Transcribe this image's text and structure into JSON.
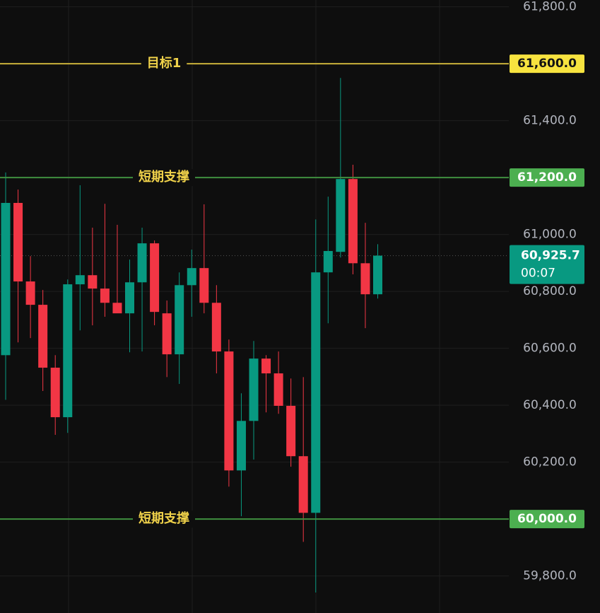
{
  "chart_data": {
    "type": "candlestick",
    "ylim": [
      59670,
      61824
    ],
    "yticks": [
      {
        "value": 59800,
        "label": "59,800.0"
      },
      {
        "value": 60000,
        "label": "60,000.0"
      },
      {
        "value": 60200,
        "label": "60,200.0"
      },
      {
        "value": 60400,
        "label": "60,400.0"
      },
      {
        "value": 60600,
        "label": "60,600.0"
      },
      {
        "value": 60800,
        "label": "60,800.0"
      },
      {
        "value": 61000,
        "label": "61,000.0"
      },
      {
        "value": 61200,
        "label": "61,200.0"
      },
      {
        "value": 61400,
        "label": "61,400.0"
      },
      {
        "value": 61600,
        "label": "61,600.0"
      },
      {
        "value": 61800,
        "label": "61,800.0"
      }
    ],
    "grid": true,
    "up_color": "#089981",
    "down_color": "#f23645",
    "series": [
      {
        "open": [
          60576,
          61111,
          60835,
          60753,
          60532,
          60358,
          60825,
          60857,
          60810,
          60760,
          60723,
          60832,
          60969,
          60723,
          60579,
          60822,
          60882,
          60760,
          60589,
          60171,
          60345,
          60564,
          60512,
          60398,
          60221,
          60022,
          60867,
          60939,
          61195,
          60899,
          60790
        ],
        "high": [
          61218,
          61158,
          60924,
          60805,
          60576,
          60842,
          61173,
          61024,
          61108,
          61034,
          60912,
          61024,
          60979,
          60768,
          60867,
          60947,
          61106,
          60822,
          60631,
          60442,
          60626,
          60576,
          60589,
          60494,
          60499,
          61053,
          61133,
          61550,
          61245,
          61041,
          60966
        ],
        "low": [
          60419,
          60621,
          60636,
          60450,
          60296,
          60303,
          60663,
          60681,
          60711,
          60730,
          60586,
          60589,
          60681,
          60499,
          60475,
          60711,
          60723,
          60512,
          60114,
          60010,
          60209,
          60375,
          60370,
          60184,
          59920,
          59742,
          60688,
          60919,
          60860,
          60671,
          60775
        ],
        "close": [
          61111,
          60835,
          60753,
          60532,
          60358,
          60825,
          60857,
          60810,
          60760,
          60723,
          60832,
          60969,
          60728,
          60579,
          60822,
          60882,
          60760,
          60589,
          60171,
          60345,
          60564,
          60512,
          60398,
          60221,
          60022,
          60867,
          60942,
          61195,
          60899,
          60790,
          60925.7
        ]
      }
    ],
    "levels": [
      {
        "value": 61600,
        "label": "目标1",
        "price_label": "61,600.0",
        "color": "#c9b13a",
        "box_color": "#f7e33f",
        "box_text_color": "#131313"
      },
      {
        "value": 61200,
        "label": "短期支撑",
        "price_label": "61,200.0",
        "color": "#3f8f3f",
        "box_color": "#4caf50",
        "box_text_color": "#ffffff"
      },
      {
        "value": 60000,
        "label": "短期支撑",
        "price_label": "60,000.0",
        "color": "#3f8f3f",
        "box_color": "#4caf50",
        "box_text_color": "#ffffff"
      }
    ],
    "level_label_color": "#f0d24a",
    "last_price": {
      "value": 60925.7,
      "label": "60,925.7",
      "countdown": "00:07",
      "color": "#089981"
    }
  }
}
